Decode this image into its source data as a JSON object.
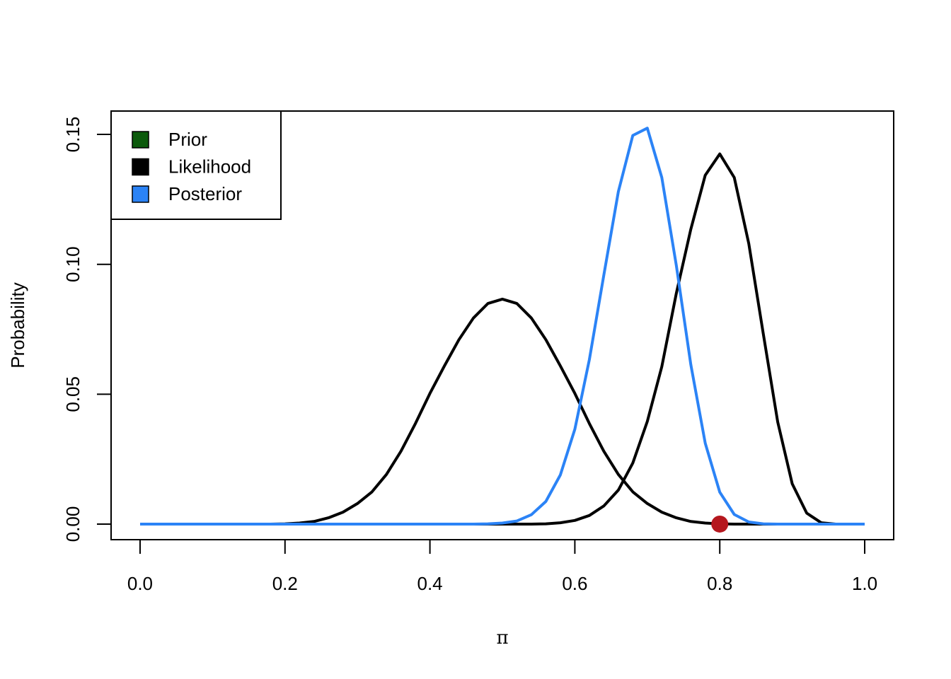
{
  "chart_data": {
    "type": "line",
    "title": "",
    "xlabel": "π",
    "ylabel": "Probability",
    "xlim": [
      -0.04,
      1.04
    ],
    "ylim": [
      -0.006,
      0.159
    ],
    "x_ticks": [
      "0.0",
      "0.2",
      "0.4",
      "0.6",
      "0.8",
      "1.0"
    ],
    "x_tick_values": [
      0.0,
      0.2,
      0.4,
      0.6,
      0.8,
      1.0
    ],
    "y_ticks": [
      "0.00",
      "0.05",
      "0.10",
      "0.15"
    ],
    "y_tick_values": [
      0.0,
      0.05,
      0.1,
      0.15
    ],
    "grid": false,
    "legend": {
      "placement": "top-left",
      "entries": [
        {
          "label": "Prior",
          "color": "#0b5a0b"
        },
        {
          "label": "Likelihood",
          "color": "#000000"
        },
        {
          "label": "Posterior",
          "color": "#2b83f6"
        }
      ]
    },
    "x": [
      0.0,
      0.02,
      0.04,
      0.06,
      0.08,
      0.1,
      0.12,
      0.14,
      0.16,
      0.18,
      0.2,
      0.22,
      0.24,
      0.26,
      0.28,
      0.3,
      0.32,
      0.34,
      0.36,
      0.38,
      0.4,
      0.42,
      0.44,
      0.46,
      0.48,
      0.5,
      0.52,
      0.54,
      0.56,
      0.58,
      0.6,
      0.62,
      0.64,
      0.66,
      0.68,
      0.7,
      0.72,
      0.74,
      0.76,
      0.78,
      0.8,
      0.82,
      0.84,
      0.86,
      0.88,
      0.9,
      0.92,
      0.94,
      0.96,
      0.98,
      1.0
    ],
    "series": [
      {
        "color": "#000000",
        "values": [
          0,
          0,
          0,
          0,
          0,
          0,
          0,
          0,
          0,
          0,
          0.0001,
          0.0004,
          0.001,
          0.0024,
          0.0046,
          0.0079,
          0.0124,
          0.0191,
          0.028,
          0.0387,
          0.0503,
          0.0609,
          0.071,
          0.0793,
          0.0849,
          0.0866,
          0.0849,
          0.0793,
          0.071,
          0.0609,
          0.0503,
          0.0387,
          0.028,
          0.0191,
          0.0124,
          0.0079,
          0.0046,
          0.0024,
          0.001,
          0.0004,
          0.0001,
          0,
          0,
          0,
          0,
          0,
          0,
          0,
          0,
          0,
          0
        ]
      },
      {
        "color": "#000000",
        "values": [
          0,
          0,
          0,
          0,
          0,
          0,
          0,
          0,
          0,
          0,
          0,
          0,
          0,
          0,
          0,
          0,
          0,
          0,
          0,
          0,
          0,
          0,
          0,
          0,
          0,
          0,
          0,
          0,
          0.0001,
          0.0005,
          0.0014,
          0.0033,
          0.007,
          0.0131,
          0.0235,
          0.0395,
          0.0606,
          0.0888,
          0.1135,
          0.1343,
          0.1425,
          0.1334,
          0.108,
          0.0733,
          0.0393,
          0.0155,
          0.0042,
          0.0005,
          0,
          0,
          0
        ]
      },
      {
        "color": "#2b83f6",
        "values": [
          0,
          0,
          0,
          0,
          0,
          0,
          0,
          0,
          0,
          0,
          0,
          0,
          0,
          0,
          0,
          0,
          0,
          0,
          0,
          0,
          0,
          0,
          0,
          0,
          0.0001,
          0.0004,
          0.0012,
          0.0036,
          0.0087,
          0.0189,
          0.0365,
          0.0633,
          0.0959,
          0.128,
          0.1496,
          0.1524,
          0.1334,
          0.0996,
          0.0614,
          0.0311,
          0.0123,
          0.0037,
          0.0008,
          0.0001,
          0,
          0,
          0,
          0,
          0,
          0,
          0
        ]
      }
    ],
    "points": [
      {
        "x": 0.8,
        "y": 0,
        "color": "#b5171e"
      }
    ]
  }
}
